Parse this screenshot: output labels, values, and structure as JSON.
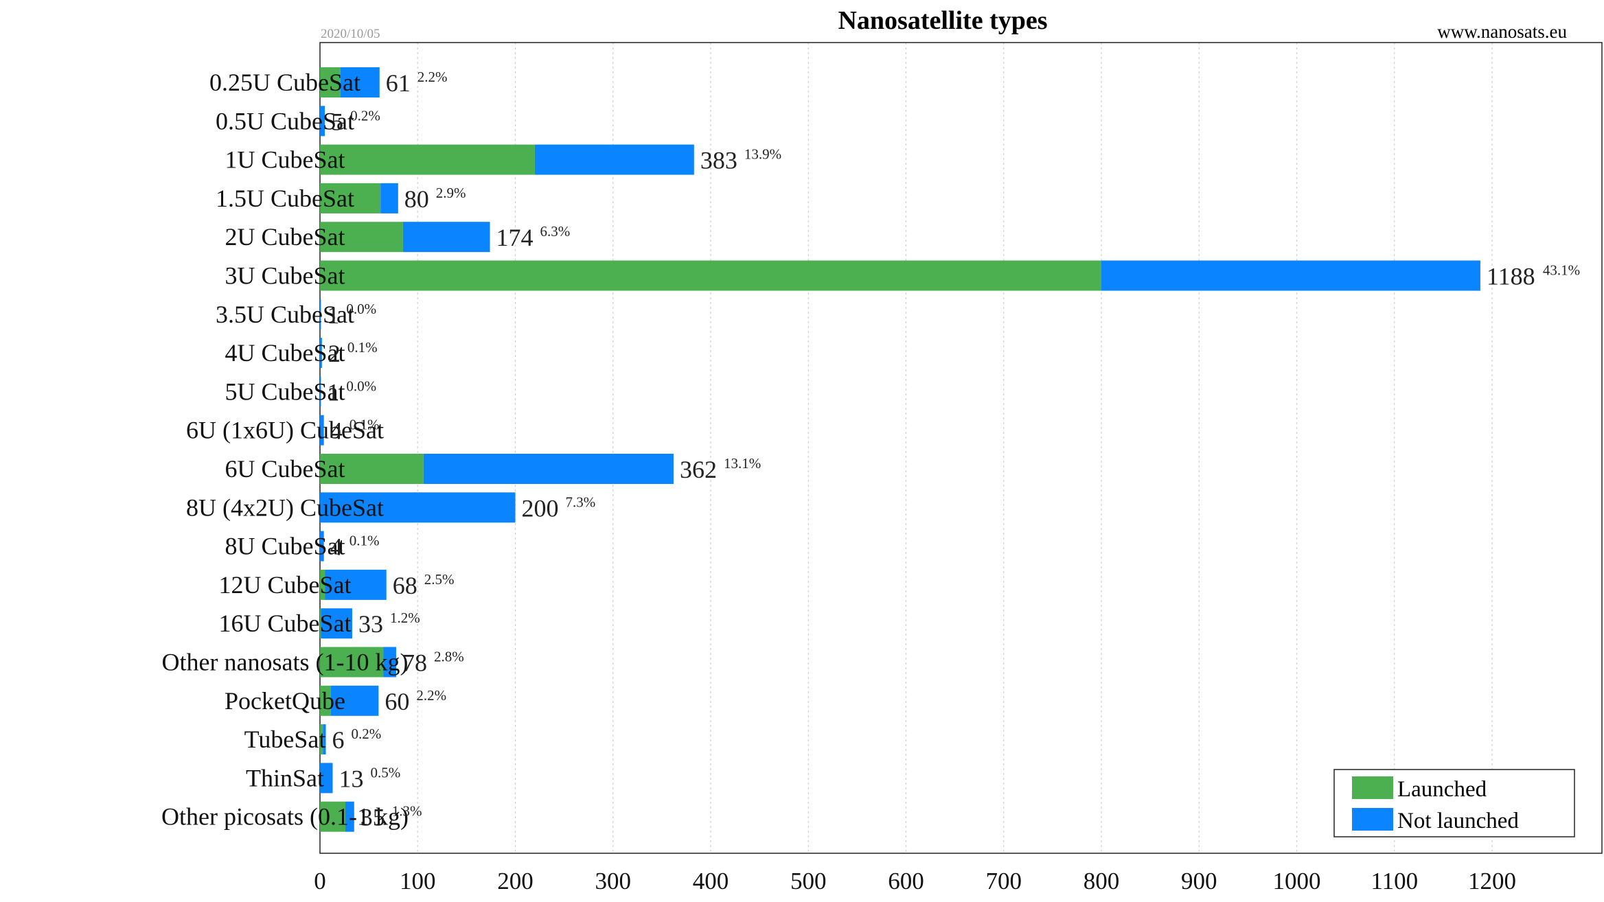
{
  "chart_data": {
    "type": "bar",
    "orientation": "horizontal",
    "stacked": true,
    "title": "Nanosatellite types",
    "date": "2020/10/05",
    "source": "www.nanosats.eu",
    "xlim": [
      0,
      1300
    ],
    "xticks": [
      0,
      100,
      200,
      300,
      400,
      500,
      600,
      700,
      800,
      900,
      1000,
      1100,
      1200
    ],
    "grid": "vertical-dotted",
    "legend_position": "bottom-right",
    "categories": [
      "0.25U CubeSat",
      "0.5U CubeSat",
      "1U CubeSat",
      "1.5U CubeSat",
      "2U CubeSat",
      "3U CubeSat",
      "3.5U CubeSat",
      "4U CubeSat",
      "5U CubeSat",
      "6U (1x6U) CubeSat",
      "6U CubeSat",
      "8U (4x2U) CubeSat",
      "8U CubeSat",
      "12U CubeSat",
      "16U CubeSat",
      "Other nanosats (1-10 kg)",
      "PocketQube",
      "TubeSat",
      "ThinSat",
      "Other picosats (0.1-1 kg)"
    ],
    "series": [
      {
        "name": "Launched",
        "color": "#4caf50",
        "values": [
          21,
          0,
          220,
          62,
          85,
          800,
          0,
          0,
          0,
          0,
          106,
          0,
          0,
          5,
          1,
          65,
          11,
          3,
          0,
          26
        ]
      },
      {
        "name": "Not launched",
        "color": "#0a84ff",
        "values": [
          40,
          5,
          163,
          18,
          89,
          388,
          1,
          2,
          1,
          4,
          256,
          200,
          4,
          63,
          32,
          13,
          49,
          3,
          13,
          9
        ]
      }
    ],
    "totals": [
      61,
      5,
      383,
      80,
      174,
      1188,
      1,
      2,
      1,
      4,
      362,
      200,
      4,
      68,
      33,
      78,
      60,
      6,
      13,
      35
    ],
    "percents": [
      "2.2%",
      "0.2%",
      "13.9%",
      "2.9%",
      "6.3%",
      "43.1%",
      "0.0%",
      "0.1%",
      "0.0%",
      "0.1%",
      "13.1%",
      "7.3%",
      "0.1%",
      "2.5%",
      "1.2%",
      "2.8%",
      "2.2%",
      "0.2%",
      "0.5%",
      "1.3%"
    ]
  }
}
